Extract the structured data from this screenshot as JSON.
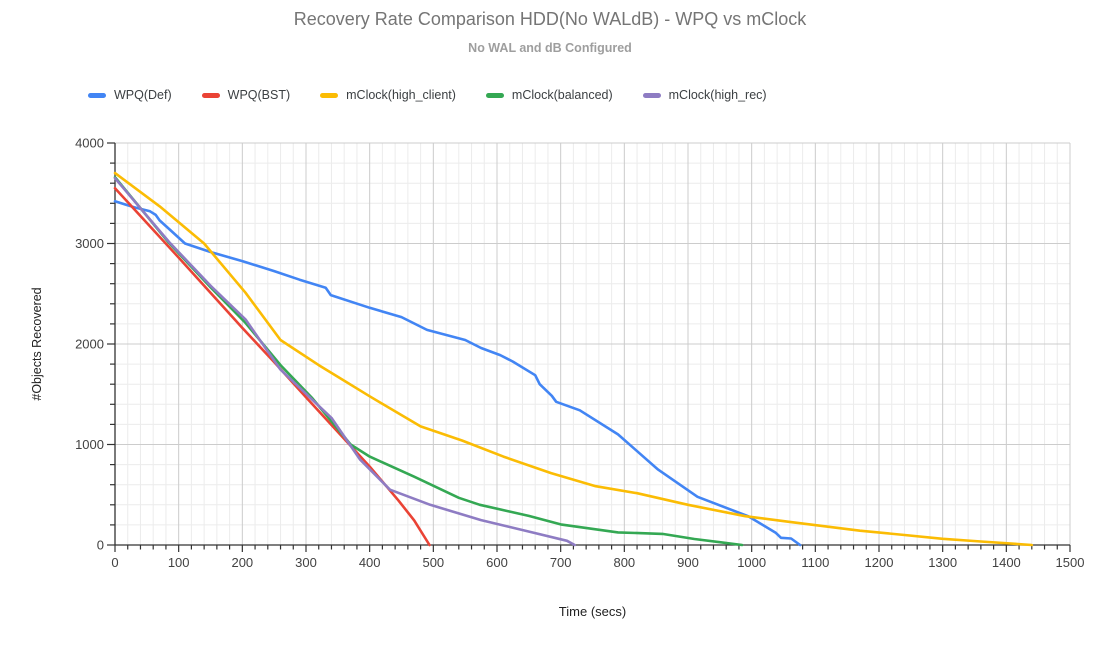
{
  "chart_data": {
    "type": "line",
    "title": "Recovery Rate Comparison HDD(No WALdB) - WPQ vs mClock",
    "subtitle": "No WAL and dB Configured",
    "xlabel": "Time (secs)",
    "ylabel": "#Objects Recovered",
    "xlim": [
      0,
      1500
    ],
    "ylim": [
      0,
      4000
    ],
    "x_major_step": 100,
    "x_minor_step": 20,
    "y_major_step": 1000,
    "y_minor_step": 200,
    "grid": true,
    "legend_position": "top-left",
    "colors": {
      "axis": "#333333",
      "tick_label": "#424242",
      "axis_title": "#222222",
      "grid_major": "#cccccc",
      "grid_minor": "#ececec",
      "title": "#757575",
      "subtitle": "#9e9e9e"
    },
    "series": [
      {
        "name": "WPQ(Def)",
        "color": "#4285f4",
        "points": [
          [
            0,
            3420
          ],
          [
            30,
            3360
          ],
          [
            55,
            3320
          ],
          [
            64,
            3285
          ],
          [
            70,
            3230
          ],
          [
            90,
            3115
          ],
          [
            110,
            3000
          ],
          [
            150,
            2915
          ],
          [
            200,
            2825
          ],
          [
            250,
            2725
          ],
          [
            290,
            2640
          ],
          [
            331,
            2560
          ],
          [
            339,
            2487
          ],
          [
            400,
            2360
          ],
          [
            450,
            2268
          ],
          [
            490,
            2140
          ],
          [
            550,
            2040
          ],
          [
            575,
            1960
          ],
          [
            605,
            1890
          ],
          [
            625,
            1825
          ],
          [
            660,
            1690
          ],
          [
            667,
            1600
          ],
          [
            686,
            1485
          ],
          [
            693,
            1425
          ],
          [
            730,
            1340
          ],
          [
            790,
            1100
          ],
          [
            853,
            750
          ],
          [
            915,
            480
          ],
          [
            995,
            285
          ],
          [
            1038,
            120
          ],
          [
            1046,
            72
          ],
          [
            1062,
            65
          ],
          [
            1076,
            0
          ]
        ]
      },
      {
        "name": "WPQ(BST)",
        "color": "#ea4335",
        "points": [
          [
            0,
            3550
          ],
          [
            50,
            3205
          ],
          [
            100,
            2860
          ],
          [
            150,
            2510
          ],
          [
            200,
            2160
          ],
          [
            250,
            1820
          ],
          [
            300,
            1470
          ],
          [
            350,
            1125
          ],
          [
            400,
            780
          ],
          [
            445,
            445
          ],
          [
            470,
            245
          ],
          [
            494,
            0
          ]
        ]
      },
      {
        "name": "mClock(high_client)",
        "color": "#fbbc04",
        "points": [
          [
            0,
            3700
          ],
          [
            70,
            3370
          ],
          [
            140,
            3000
          ],
          [
            205,
            2510
          ],
          [
            260,
            2040
          ],
          [
            320,
            1790
          ],
          [
            400,
            1480
          ],
          [
            480,
            1180
          ],
          [
            545,
            1040
          ],
          [
            610,
            880
          ],
          [
            685,
            715
          ],
          [
            755,
            585
          ],
          [
            820,
            515
          ],
          [
            900,
            400
          ],
          [
            990,
            287
          ],
          [
            1060,
            230
          ],
          [
            1170,
            142
          ],
          [
            1240,
            100
          ],
          [
            1300,
            62
          ],
          [
            1360,
            35
          ],
          [
            1440,
            0
          ]
        ]
      },
      {
        "name": "mClock(balanced)",
        "color": "#34a853",
        "points": [
          [
            0,
            3660
          ],
          [
            85,
            3005
          ],
          [
            150,
            2565
          ],
          [
            205,
            2210
          ],
          [
            260,
            1790
          ],
          [
            310,
            1460
          ],
          [
            370,
            1000
          ],
          [
            400,
            880
          ],
          [
            470,
            680
          ],
          [
            540,
            470
          ],
          [
            573,
            400
          ],
          [
            650,
            290
          ],
          [
            700,
            205
          ],
          [
            790,
            125
          ],
          [
            860,
            110
          ],
          [
            910,
            60
          ],
          [
            950,
            28
          ],
          [
            985,
            0
          ]
        ]
      },
      {
        "name": "mClock(high_rec)",
        "color": "#8e7cc3",
        "points": [
          [
            0,
            3650
          ],
          [
            85,
            3015
          ],
          [
            150,
            2580
          ],
          [
            205,
            2245
          ],
          [
            260,
            1745
          ],
          [
            340,
            1265
          ],
          [
            385,
            850
          ],
          [
            432,
            550
          ],
          [
            495,
            400
          ],
          [
            575,
            248
          ],
          [
            652,
            130
          ],
          [
            710,
            42
          ],
          [
            722,
            0
          ]
        ]
      }
    ]
  }
}
